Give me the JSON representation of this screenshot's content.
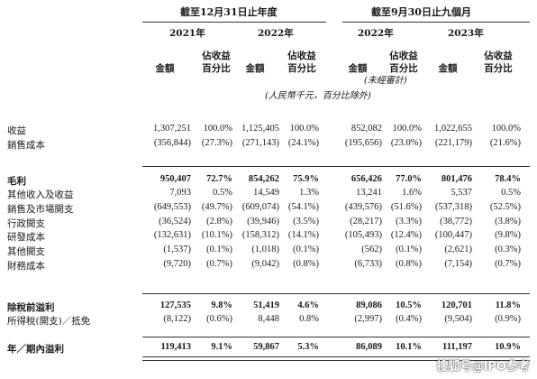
{
  "header": {
    "period1": "截至12月31日止年度",
    "period2": "截至9月30日止九個月",
    "years": [
      "2021年",
      "2022年",
      "2022年",
      "2023年"
    ],
    "col_amount": "金額",
    "col_pct_line1": "佔收益",
    "col_pct_line2": "百分比",
    "unaudited": "(未經審計)",
    "unit": "(人民幣千元，百分比除外)"
  },
  "rows": [
    {
      "label": "收益",
      "bold": false,
      "values": [
        "1,307,251",
        "100.0%",
        "1,125,405",
        "100.0%",
        "852,082",
        "100.0%",
        "1,022,655",
        "100.0%"
      ]
    },
    {
      "label": "銷售成本",
      "bold": false,
      "values": [
        "(356,844)",
        "(27.3%)",
        "(271,143)",
        "(24.1%)",
        "(195,656)",
        "(23.0%)",
        "(221,179)",
        "(21.6%)"
      ]
    },
    {
      "label": "毛利",
      "bold": true,
      "values": [
        "950,407",
        "72.7%",
        "854,262",
        "75.9%",
        "656,426",
        "77.0%",
        "801,476",
        "78.4%"
      ]
    },
    {
      "label": "其他收入及收益",
      "bold": false,
      "values": [
        "7,093",
        "0.5%",
        "14,549",
        "1.3%",
        "13,241",
        "1.6%",
        "5,537",
        "0.5%"
      ]
    },
    {
      "label": "銷售及市場開支",
      "bold": false,
      "values": [
        "(649,553)",
        "(49.7%)",
        "(609,074)",
        "(54.1%)",
        "(439,576)",
        "(51.6%)",
        "(537,318)",
        "(52.5%)"
      ]
    },
    {
      "label": "行政開支",
      "bold": false,
      "values": [
        "(36,524)",
        "(2.8%)",
        "(39,946)",
        "(3.5%)",
        "(28,217)",
        "(3.3%)",
        "(38,772)",
        "(3.8%)"
      ]
    },
    {
      "label": "研發成本",
      "bold": false,
      "values": [
        "(132,631)",
        "(10.1%)",
        "(158,312)",
        "(14.1%)",
        "(105,493)",
        "(12.4%)",
        "(100,447)",
        "(9.8%)"
      ]
    },
    {
      "label": "其他開支",
      "bold": false,
      "values": [
        "(1,537)",
        "(0.1%)",
        "(1,018)",
        "(0.1%)",
        "(562)",
        "(0.1%)",
        "(2,621)",
        "(0.3%)"
      ]
    },
    {
      "label": "財務成本",
      "bold": false,
      "values": [
        "(9,720)",
        "(0.7%)",
        "(9,042)",
        "(0.8%)",
        "(6,733)",
        "(0.8%)",
        "(7,154)",
        "(0.7%)"
      ]
    },
    {
      "label": "除稅前溢利",
      "bold": true,
      "values": [
        "127,535",
        "9.8%",
        "51,419",
        "4.6%",
        "89,086",
        "10.5%",
        "120,701",
        "11.8%"
      ]
    },
    {
      "label": "所得稅(開支)／抵免",
      "bold": false,
      "values": [
        "(8,122)",
        "(0.6%)",
        "8,448",
        "0.8%",
        "(2,997)",
        "(0.4%)",
        "(9,504)",
        "(0.9%)"
      ]
    },
    {
      "label": "年／期內溢利",
      "bold": true,
      "values": [
        "119,413",
        "9.1%",
        "59,867",
        "5.3%",
        "86,089",
        "10.1%",
        "111,197",
        "10.9%"
      ]
    }
  ],
  "watermark": "搜狐号@IPO参考"
}
